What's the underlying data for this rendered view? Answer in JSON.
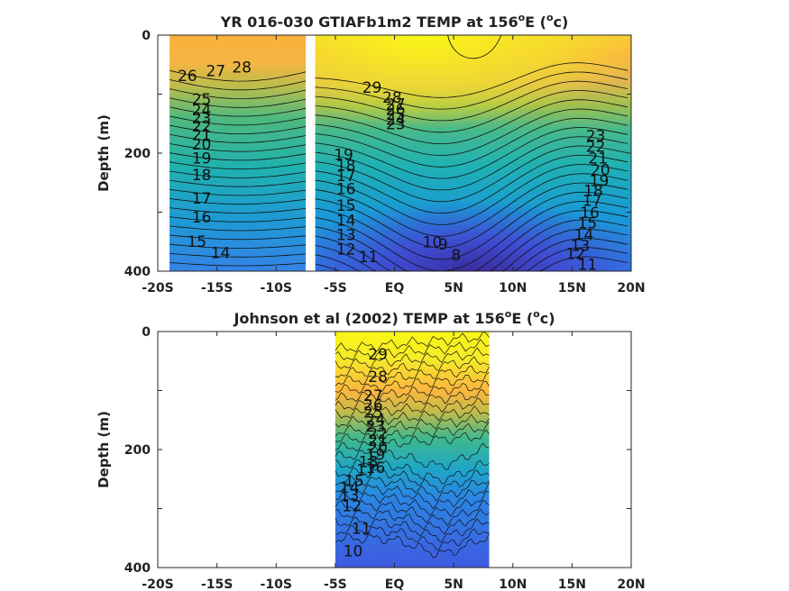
{
  "chart_data": [
    {
      "type": "heatmap",
      "title": "YR 016-030 GTIAFb1m2 TEMP at 156",
      "title_unit_suffix": "E (",
      "title_degree": "o",
      "title_unit": "c",
      "title_close": ")",
      "ylabel": "Depth (m)",
      "x_tick_labels": [
        "-20S",
        "-15S",
        "-10S",
        "-5S",
        "EQ",
        "5N",
        "10N",
        "15N",
        "20N"
      ],
      "x_tick_values": [
        -20,
        -15,
        -10,
        -5,
        0,
        5,
        10,
        15,
        20
      ],
      "y_tick_labels": [
        "0",
        "200",
        "400"
      ],
      "y_tick_values": [
        0,
        200,
        400
      ],
      "xlim": [
        -20,
        20
      ],
      "ylim": [
        400,
        0
      ],
      "data_extent": [
        -19,
        20
      ],
      "gap": [
        -7.5,
        -6.7
      ],
      "colormap": "parula",
      "grid": false,
      "contour_labels": [
        {
          "text": "26",
          "x": -17.5,
          "y": 70
        },
        {
          "text": "27",
          "x": -15.1,
          "y": 62
        },
        {
          "text": "28",
          "x": -12.9,
          "y": 56
        },
        {
          "text": "25",
          "x": -16.3,
          "y": 110
        },
        {
          "text": "24",
          "x": -16.3,
          "y": 128
        },
        {
          "text": "23",
          "x": -16.3,
          "y": 142
        },
        {
          "text": "22",
          "x": -16.3,
          "y": 156
        },
        {
          "text": "21",
          "x": -16.3,
          "y": 170
        },
        {
          "text": "20",
          "x": -16.3,
          "y": 186
        },
        {
          "text": "19",
          "x": -16.3,
          "y": 210
        },
        {
          "text": "18",
          "x": -16.3,
          "y": 238
        },
        {
          "text": "17",
          "x": -16.3,
          "y": 278
        },
        {
          "text": "16",
          "x": -16.3,
          "y": 310
        },
        {
          "text": "15",
          "x": -16.7,
          "y": 351
        },
        {
          "text": "14",
          "x": -14.7,
          "y": 370
        },
        {
          "text": "29",
          "x": -1.9,
          "y": 90
        },
        {
          "text": "28",
          "x": -0.2,
          "y": 107
        },
        {
          "text": "27",
          "x": 0.1,
          "y": 118
        },
        {
          "text": "26",
          "x": 0.1,
          "y": 127
        },
        {
          "text": "25",
          "x": 0.1,
          "y": 136
        },
        {
          "text": "24",
          "x": 0.1,
          "y": 144
        },
        {
          "text": "23",
          "x": 0.1,
          "y": 152
        },
        {
          "text": "19",
          "x": -4.3,
          "y": 204
        },
        {
          "text": "18",
          "x": -4.1,
          "y": 222
        },
        {
          "text": "17",
          "x": -4.1,
          "y": 240
        },
        {
          "text": "16",
          "x": -4.1,
          "y": 262
        },
        {
          "text": "15",
          "x": -4.1,
          "y": 290
        },
        {
          "text": "14",
          "x": -4.1,
          "y": 315
        },
        {
          "text": "13",
          "x": -4.1,
          "y": 340
        },
        {
          "text": "12",
          "x": -4.1,
          "y": 364
        },
        {
          "text": "11",
          "x": -2.2,
          "y": 377
        },
        {
          "text": "10",
          "x": 3.2,
          "y": 352
        },
        {
          "text": "9",
          "x": 4.1,
          "y": 356
        },
        {
          "text": "8",
          "x": 5.2,
          "y": 374
        },
        {
          "text": "23",
          "x": 17.0,
          "y": 172
        },
        {
          "text": "22",
          "x": 17.0,
          "y": 190
        },
        {
          "text": "21",
          "x": 17.2,
          "y": 210
        },
        {
          "text": "20",
          "x": 17.4,
          "y": 230
        },
        {
          "text": "19",
          "x": 17.3,
          "y": 248
        },
        {
          "text": "18",
          "x": 16.8,
          "y": 265
        },
        {
          "text": "17",
          "x": 16.7,
          "y": 282
        },
        {
          "text": "16",
          "x": 16.5,
          "y": 302
        },
        {
          "text": "15",
          "x": 16.3,
          "y": 320
        },
        {
          "text": "14",
          "x": 16.0,
          "y": 340
        },
        {
          "text": "13",
          "x": 15.7,
          "y": 358
        },
        {
          "text": "12",
          "x": 15.3,
          "y": 372
        },
        {
          "text": "11",
          "x": 16.3,
          "y": 390
        }
      ]
    },
    {
      "type": "heatmap",
      "title": "Johnson et al (2002) TEMP at 156",
      "title_unit_suffix": "E (",
      "title_degree": "o",
      "title_unit": "c",
      "title_close": ")",
      "ylabel": "Depth (m)",
      "x_tick_labels": [
        "-20S",
        "-15S",
        "-10S",
        "-5S",
        "EQ",
        "5N",
        "10N",
        "15N",
        "20N"
      ],
      "x_tick_values": [
        -20,
        -15,
        -10,
        -5,
        0,
        5,
        10,
        15,
        20
      ],
      "y_tick_labels": [
        "0",
        "200",
        "400"
      ],
      "y_tick_values": [
        0,
        200,
        400
      ],
      "xlim": [
        -20,
        20
      ],
      "ylim": [
        400,
        0
      ],
      "data_extent": [
        -5,
        8
      ],
      "colormap": "parula",
      "grid": false,
      "contour_labels": [
        {
          "text": "29",
          "x": -1.4,
          "y": 40
        },
        {
          "text": "28",
          "x": -1.4,
          "y": 78
        },
        {
          "text": "27",
          "x": -1.8,
          "y": 110
        },
        {
          "text": "26",
          "x": -1.8,
          "y": 126
        },
        {
          "text": "25",
          "x": -1.8,
          "y": 138
        },
        {
          "text": "24",
          "x": -1.6,
          "y": 150
        },
        {
          "text": "23",
          "x": -1.6,
          "y": 162
        },
        {
          "text": "22",
          "x": -1.4,
          "y": 174
        },
        {
          "text": "21",
          "x": -1.4,
          "y": 186
        },
        {
          "text": "20",
          "x": -1.4,
          "y": 198
        },
        {
          "text": "19",
          "x": -1.6,
          "y": 210
        },
        {
          "text": "18",
          "x": -2.2,
          "y": 222
        },
        {
          "text": "17",
          "x": -2.4,
          "y": 236
        },
        {
          "text": "16",
          "x": -1.6,
          "y": 232
        },
        {
          "text": "15",
          "x": -3.4,
          "y": 254
        },
        {
          "text": "14",
          "x": -3.8,
          "y": 266
        },
        {
          "text": "13",
          "x": -3.8,
          "y": 279
        },
        {
          "text": "12",
          "x": -3.6,
          "y": 297
        },
        {
          "text": "11",
          "x": -2.8,
          "y": 335
        },
        {
          "text": "10",
          "x": -3.5,
          "y": 373
        }
      ]
    }
  ]
}
